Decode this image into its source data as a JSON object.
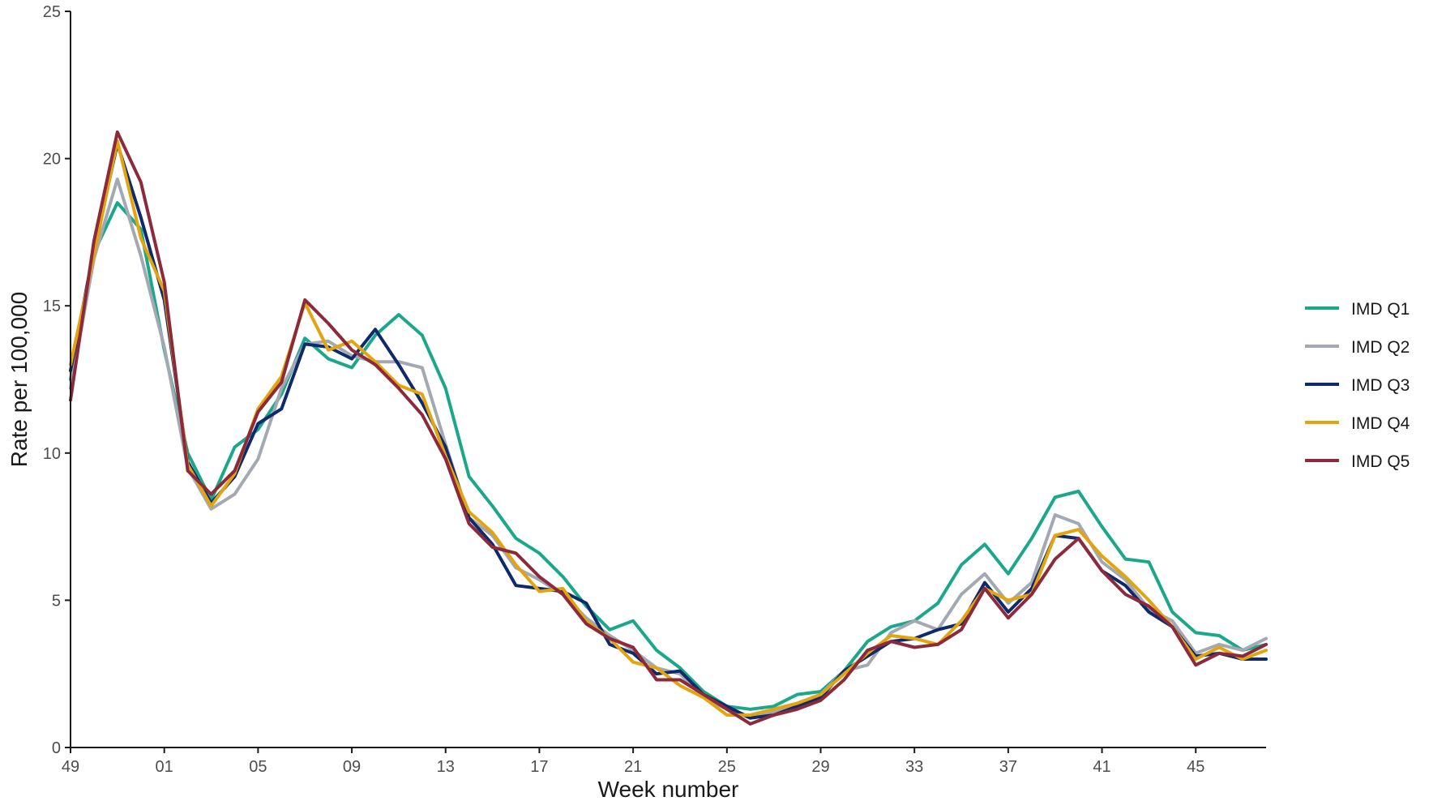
{
  "chart_data": {
    "type": "line",
    "title": "",
    "xlabel": "Week number",
    "ylabel": "Rate per 100,000",
    "ylim": [
      0,
      25
    ],
    "yticks": [
      0,
      5,
      10,
      15,
      20,
      25
    ],
    "xtick_labels": [
      "49",
      "01",
      "05",
      "09",
      "13",
      "17",
      "21",
      "25",
      "29",
      "33",
      "37",
      "41",
      "45"
    ],
    "x": [
      "49",
      "50",
      "51",
      "52",
      "01",
      "02",
      "03",
      "04",
      "05",
      "06",
      "07",
      "08",
      "09",
      "10",
      "11",
      "12",
      "13",
      "14",
      "15",
      "16",
      "17",
      "18",
      "19",
      "20",
      "21",
      "22",
      "23",
      "24",
      "25",
      "26",
      "27",
      "28",
      "29",
      "30",
      "31",
      "32",
      "33",
      "34",
      "35",
      "36",
      "37",
      "38",
      "39",
      "40",
      "41",
      "42",
      "43",
      "44",
      "45",
      "46",
      "47",
      "48"
    ],
    "grid": false,
    "legend_position": "right",
    "series": [
      {
        "name": "IMD Q1",
        "color": "#1aa78a",
        "values": [
          12.5,
          16.8,
          18.5,
          17.6,
          13.5,
          10.0,
          8.4,
          10.2,
          10.8,
          12.0,
          13.9,
          13.2,
          12.9,
          14.0,
          14.7,
          14.0,
          12.2,
          9.2,
          8.2,
          7.1,
          6.6,
          5.8,
          4.8,
          4.0,
          4.3,
          3.3,
          2.7,
          1.9,
          1.4,
          1.3,
          1.4,
          1.8,
          1.9,
          2.6,
          3.6,
          4.1,
          4.3,
          4.9,
          6.2,
          6.9,
          5.9,
          7.1,
          8.5,
          8.7,
          7.5,
          6.4,
          6.3,
          4.6,
          3.9,
          3.8,
          3.3,
          3.5
        ]
      },
      {
        "name": "IMD Q2",
        "color": "#a2a9b3",
        "values": [
          12.2,
          16.6,
          19.3,
          16.7,
          13.6,
          9.5,
          8.1,
          8.6,
          9.8,
          12.2,
          13.7,
          13.8,
          13.3,
          13.1,
          13.1,
          12.9,
          10.3,
          7.8,
          7.2,
          6.1,
          5.7,
          5.2,
          4.4,
          3.8,
          3.3,
          2.7,
          2.5,
          1.7,
          1.3,
          1.0,
          1.2,
          1.5,
          1.8,
          2.6,
          2.8,
          3.9,
          4.3,
          4.0,
          5.2,
          5.9,
          4.9,
          5.6,
          7.9,
          7.6,
          6.3,
          5.7,
          4.7,
          4.3,
          3.2,
          3.5,
          3.3,
          3.7
        ]
      },
      {
        "name": "IMD Q3",
        "color": "#0e2a6c",
        "values": [
          12.8,
          16.9,
          20.5,
          18.0,
          15.2,
          9.7,
          8.3,
          9.2,
          11.0,
          11.5,
          13.7,
          13.6,
          13.2,
          14.2,
          13.0,
          11.7,
          10.2,
          7.8,
          6.9,
          5.5,
          5.4,
          5.3,
          4.9,
          3.5,
          3.2,
          2.5,
          2.6,
          1.8,
          1.4,
          1.0,
          1.1,
          1.4,
          1.7,
          2.6,
          3.1,
          3.6,
          3.7,
          4.0,
          4.2,
          5.6,
          4.6,
          5.4,
          7.2,
          7.1,
          6.0,
          5.5,
          4.6,
          4.1,
          3.1,
          3.2,
          3.0,
          3.0
        ]
      },
      {
        "name": "IMD Q4",
        "color": "#e2a50f",
        "values": [
          13.0,
          16.7,
          20.6,
          17.3,
          15.5,
          9.6,
          8.2,
          9.3,
          11.5,
          12.6,
          15.1,
          13.5,
          13.8,
          13.1,
          12.3,
          12.0,
          9.9,
          8.0,
          7.3,
          6.2,
          5.3,
          5.4,
          4.3,
          3.7,
          2.9,
          2.7,
          2.1,
          1.7,
          1.1,
          1.1,
          1.3,
          1.5,
          1.8,
          2.5,
          3.2,
          3.8,
          3.7,
          3.5,
          4.3,
          5.4,
          5.0,
          5.2,
          7.2,
          7.4,
          6.5,
          5.8,
          5.0,
          4.1,
          3.0,
          3.4,
          3.0,
          3.3
        ]
      },
      {
        "name": "IMD Q5",
        "color": "#8c2a3c",
        "values": [
          11.8,
          17.2,
          20.9,
          19.2,
          15.8,
          9.4,
          8.6,
          9.4,
          11.4,
          12.4,
          15.2,
          14.4,
          13.5,
          13.0,
          12.2,
          11.3,
          9.8,
          7.6,
          6.8,
          6.6,
          5.8,
          5.2,
          4.2,
          3.7,
          3.4,
          2.3,
          2.3,
          1.8,
          1.3,
          0.8,
          1.1,
          1.3,
          1.6,
          2.3,
          3.3,
          3.6,
          3.4,
          3.5,
          4.0,
          5.4,
          4.4,
          5.2,
          6.4,
          7.1,
          6.0,
          5.2,
          4.8,
          4.1,
          2.8,
          3.2,
          3.1,
          3.5
        ]
      }
    ]
  }
}
